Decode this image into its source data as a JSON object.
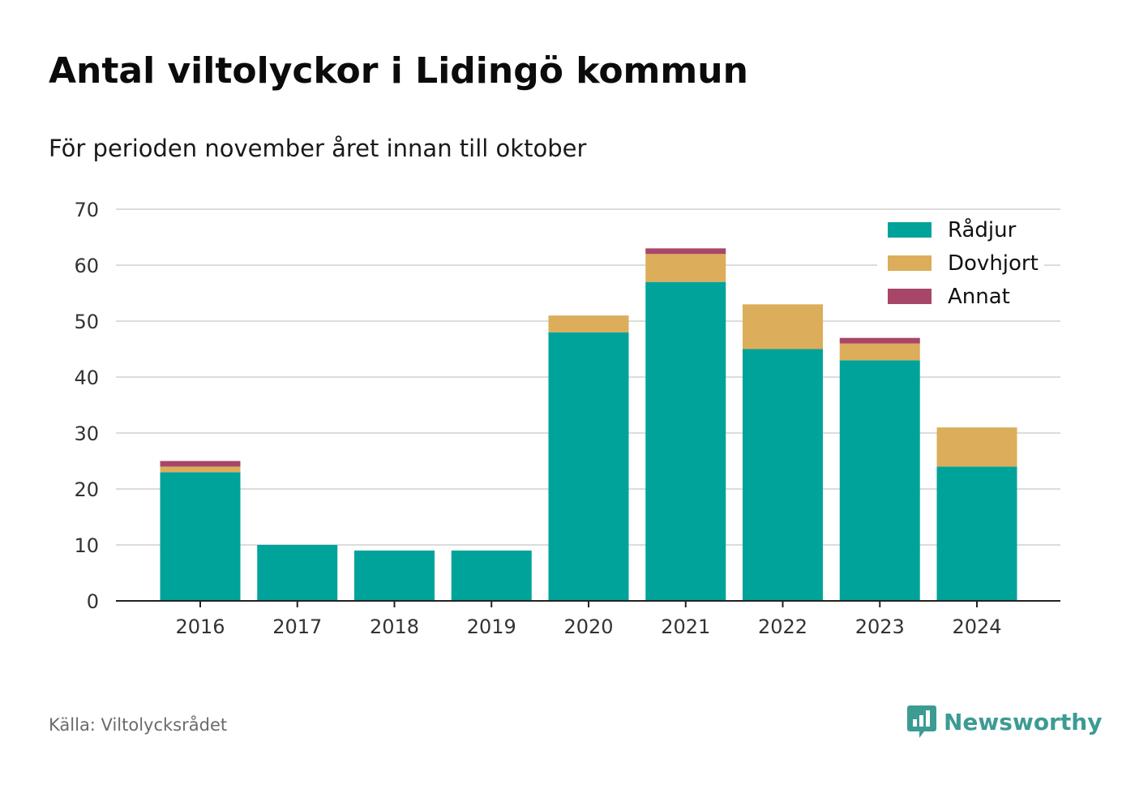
{
  "title": "Antal viltolyckor i Lidingö kommun",
  "subtitle": "För perioden november året innan till oktober",
  "source": "Källa: Viltolycksrådet",
  "brand": {
    "name": "Newsworthy",
    "icon": "newsworthy-logo-icon",
    "color": "#3c9b93"
  },
  "chart_data": {
    "type": "bar",
    "stacked": true,
    "categories": [
      "2016",
      "2017",
      "2018",
      "2019",
      "2020",
      "2021",
      "2022",
      "2023",
      "2024"
    ],
    "series": [
      {
        "name": "Rådjur",
        "color": "#00a39a",
        "values": [
          23,
          10,
          9,
          9,
          48,
          57,
          45,
          43,
          24
        ]
      },
      {
        "name": "Dovhjort",
        "color": "#dcad5b",
        "values": [
          1,
          0,
          0,
          0,
          3,
          5,
          8,
          3,
          7
        ]
      },
      {
        "name": "Annat",
        "color": "#a8466a",
        "values": [
          1,
          0,
          0,
          0,
          0,
          1,
          0,
          1,
          0
        ]
      }
    ],
    "ylim": [
      0,
      70
    ],
    "yticks": [
      0,
      10,
      20,
      30,
      40,
      50,
      60,
      70
    ],
    "grid": true,
    "legend": "top-right",
    "xlabel": "",
    "ylabel": ""
  }
}
